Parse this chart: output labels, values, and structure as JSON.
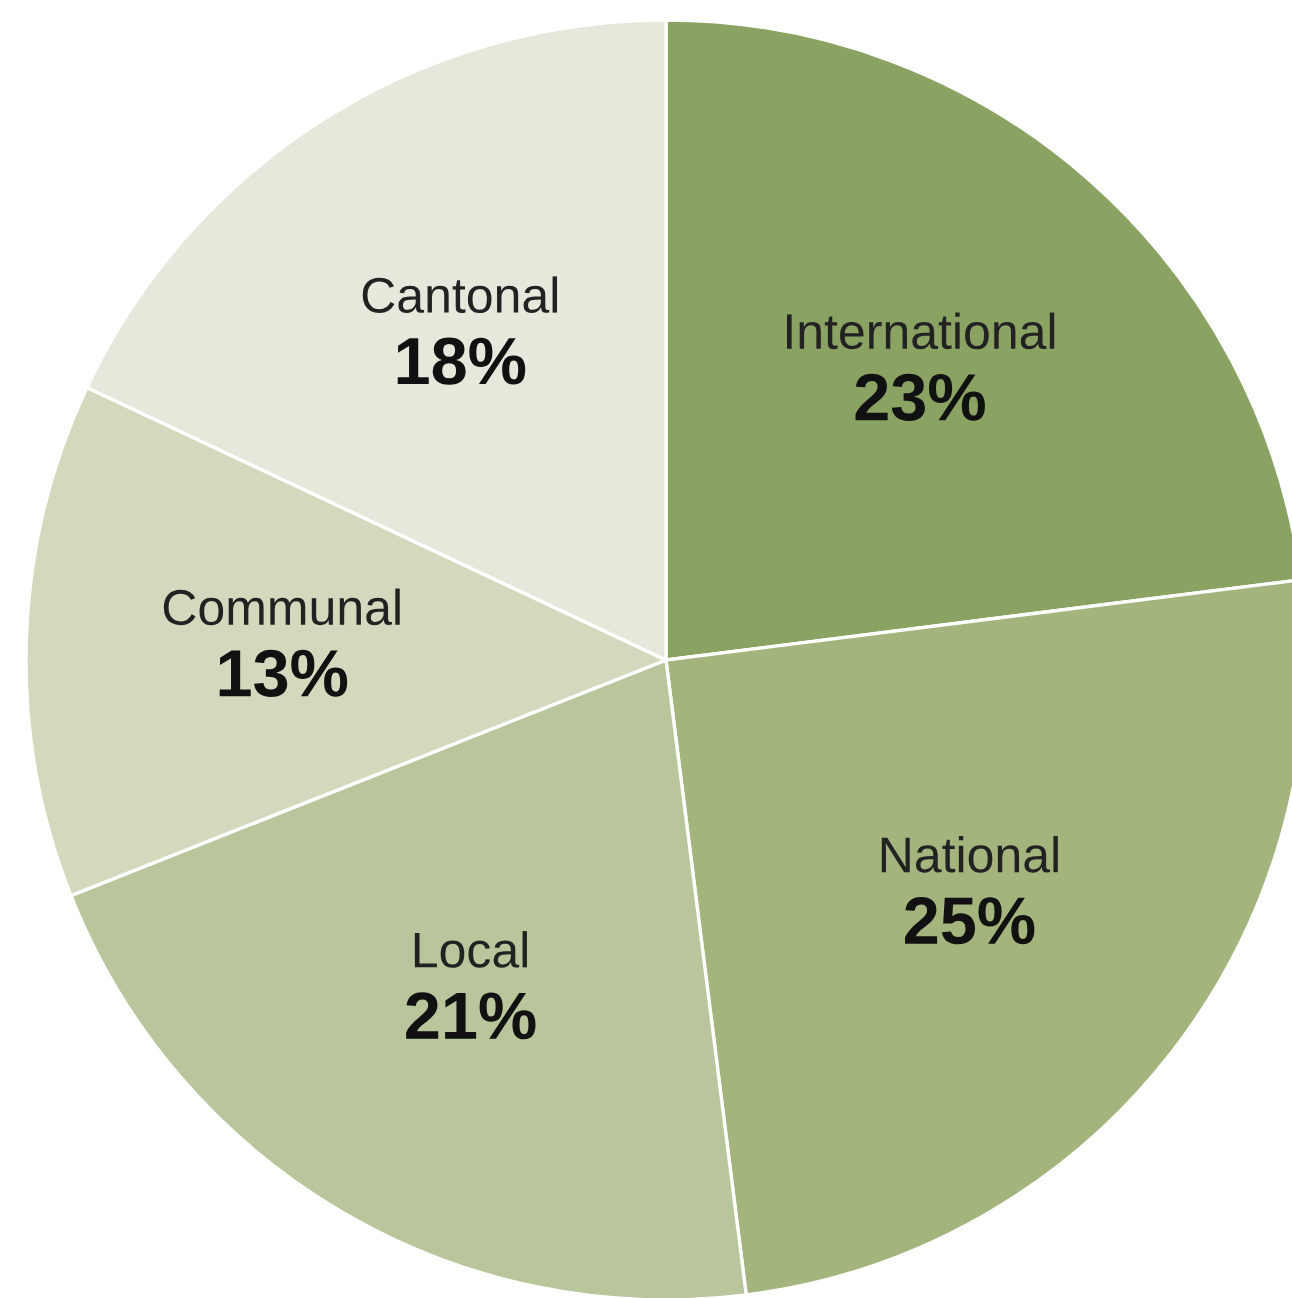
{
  "chart_data": {
    "type": "pie",
    "categories": [
      "International",
      "National",
      "Local",
      "Communal",
      "Cantonal"
    ],
    "values": [
      23,
      25,
      21,
      13,
      18
    ],
    "value_labels": [
      "23%",
      "25%",
      "21%",
      "13%",
      "18%"
    ],
    "colors": [
      "#8aa363",
      "#a3b47d",
      "#b9c59b",
      "#d3d9bd",
      "#e7e8dc"
    ],
    "legend": false
  }
}
